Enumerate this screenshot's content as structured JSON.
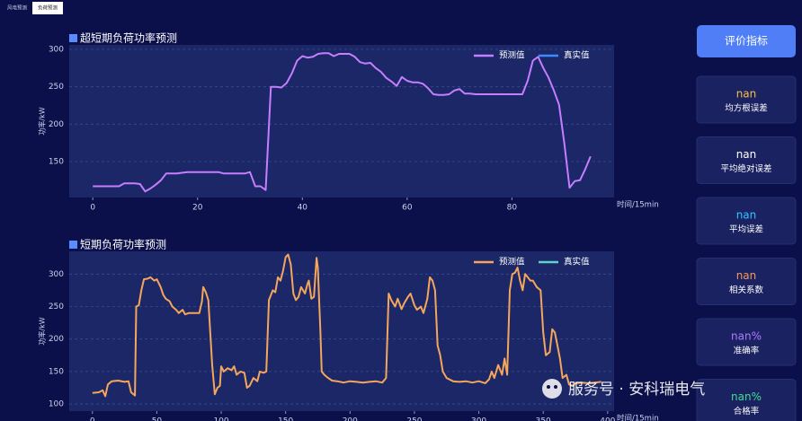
{
  "tabs": [
    "风电预测",
    "负荷预测"
  ],
  "active_tab": 1,
  "chart_data": [
    {
      "type": "line",
      "title": "超短期负荷功率预测",
      "y_label": "功率/kW",
      "x_label": "时间/15min",
      "x": [
        0,
        1,
        2,
        3,
        4,
        5,
        6,
        7,
        8,
        9,
        10,
        11,
        12,
        13,
        14,
        15,
        16,
        17,
        18,
        19,
        20,
        21,
        22,
        23,
        24,
        25,
        26,
        27,
        28,
        29,
        30,
        31,
        32,
        33,
        34,
        35,
        36,
        37,
        38,
        39,
        40,
        41,
        42,
        43,
        44,
        45,
        46,
        47,
        48,
        49,
        50,
        51,
        52,
        53,
        54,
        55,
        56,
        57,
        58,
        59,
        60,
        61,
        62,
        63,
        64,
        65,
        66,
        67,
        68,
        69,
        70,
        71,
        72,
        73,
        74,
        75,
        76,
        77,
        78,
        79,
        80,
        81,
        82,
        83,
        84,
        85,
        86,
        87,
        88,
        89,
        90,
        91,
        92,
        93,
        94,
        95
      ],
      "series": [
        {
          "name": "预测值",
          "color": "#c77dff",
          "values": [
            117,
            117,
            117,
            117,
            117,
            117,
            121,
            121,
            121,
            120,
            110,
            114,
            119,
            125,
            134,
            134,
            134,
            135,
            136,
            136,
            136,
            136,
            136,
            136,
            136,
            134,
            134,
            134,
            134,
            134,
            136,
            117,
            117,
            112,
            250,
            250,
            249,
            255,
            268,
            285,
            291,
            289,
            290,
            294,
            295,
            295,
            291,
            294,
            294,
            294,
            290,
            283,
            281,
            282,
            275,
            270,
            262,
            257,
            251,
            263,
            258,
            256,
            256,
            254,
            248,
            240,
            239,
            239,
            240,
            245,
            247,
            241,
            241,
            240,
            240,
            240,
            240,
            240,
            240,
            240,
            240,
            240,
            240,
            258,
            285,
            290,
            275,
            262,
            245,
            226,
            175,
            115,
            124,
            125,
            140,
            157
          ]
        },
        {
          "name": "真实值",
          "color": "#3d8bff"
        }
      ],
      "xlim": [
        -4.5,
        99.5
      ],
      "ylim": [
        102,
        306
      ],
      "xticks": [
        0,
        20,
        40,
        60,
        80
      ],
      "yticks": [
        150,
        200,
        250,
        300
      ],
      "grid": true,
      "legend": "upper right"
    },
    {
      "type": "line",
      "title": "短期负荷功率预测",
      "y_label": "功率/kW",
      "x_label": "时间/15min",
      "x": [
        0,
        5,
        8,
        10,
        12,
        15,
        20,
        25,
        28,
        30,
        33,
        34,
        36,
        38,
        40,
        43,
        45,
        48,
        50,
        53,
        55,
        57,
        60,
        62,
        65,
        67,
        70,
        72,
        75,
        80,
        83,
        85,
        86,
        88,
        90,
        91,
        93,
        95,
        97,
        99,
        100,
        102,
        105,
        108,
        110,
        112,
        115,
        118,
        120,
        122,
        125,
        128,
        130,
        133,
        135,
        137,
        140,
        142,
        144,
        146,
        148,
        150,
        152,
        154,
        156,
        158,
        160,
        162,
        165,
        167,
        168,
        170,
        172,
        174,
        175,
        177,
        178,
        180,
        183,
        186,
        190,
        195,
        200,
        205,
        210,
        215,
        220,
        225,
        228,
        230,
        232,
        235,
        237,
        240,
        242,
        245,
        247,
        250,
        252,
        255,
        257,
        260,
        262,
        264,
        266,
        268,
        270,
        272,
        275,
        280,
        285,
        290,
        295,
        300,
        305,
        308,
        310,
        312,
        315,
        318,
        320,
        322,
        324,
        326,
        328,
        330,
        332,
        334,
        336,
        338,
        340,
        342,
        345,
        348,
        350,
        352,
        355,
        357,
        359,
        361,
        363,
        365,
        368,
        370,
        373,
        375,
        380,
        385,
        390,
        395
      ],
      "series": [
        {
          "name": "预测值",
          "color": "#f5a65b",
          "values": [
            117,
            118,
            121,
            112,
            130,
            135,
            136,
            134,
            135,
            118,
            113,
            250,
            252,
            275,
            292,
            293,
            295,
            290,
            292,
            280,
            268,
            262,
            258,
            250,
            245,
            240,
            245,
            238,
            240,
            240,
            240,
            258,
            280,
            272,
            260,
            225,
            160,
            115,
            125,
            128,
            158,
            150,
            155,
            152,
            158,
            145,
            150,
            148,
            125,
            128,
            140,
            135,
            150,
            148,
            150,
            260,
            275,
            272,
            295,
            290,
            305,
            326,
            330,
            315,
            270,
            260,
            265,
            280,
            270,
            285,
            290,
            262,
            265,
            325,
            310,
            210,
            150,
            145,
            140,
            136,
            135,
            133,
            135,
            134,
            133,
            134,
            135,
            133,
            140,
            270,
            260,
            250,
            262,
            246,
            255,
            265,
            270,
            252,
            245,
            250,
            240,
            262,
            295,
            290,
            275,
            190,
            175,
            150,
            140,
            135,
            134,
            135,
            133,
            135,
            132,
            138,
            150,
            140,
            160,
            145,
            170,
            145,
            275,
            300,
            302,
            310,
            290,
            275,
            300,
            295,
            290,
            290,
            280,
            275,
            210,
            175,
            180,
            215,
            210,
            190,
            170,
            140,
            145,
            130,
            128,
            132,
            133,
            132,
            133,
            134
          ]
        },
        {
          "name": "真实值",
          "color": "#5fd3c8"
        }
      ],
      "xlim": [
        -18,
        405
      ],
      "ylim": [
        89,
        335
      ],
      "xticks": [
        0,
        50,
        100,
        150,
        200,
        250,
        300,
        350,
        400
      ],
      "yticks": [
        100,
        150,
        200,
        250,
        300
      ],
      "grid": true,
      "legend": "upper right"
    }
  ],
  "sidebar": {
    "button": "评价指标",
    "metrics": [
      {
        "value": "nan",
        "label": "均方根误差",
        "color": "#f5c04a"
      },
      {
        "value": "nan",
        "label": "平均绝对误差",
        "color": "#ffffff"
      },
      {
        "value": "nan",
        "label": "平均误差",
        "color": "#2ec7ff"
      },
      {
        "value": "nan",
        "label": "相关系数",
        "color": "#f59a5b"
      },
      {
        "value": "nan%",
        "label": "准确率",
        "color": "#b07cff"
      },
      {
        "value": "nan%",
        "label": "合格率",
        "color": "#3ee08a"
      }
    ]
  },
  "watermark": "服务号 · 安科瑞电气"
}
